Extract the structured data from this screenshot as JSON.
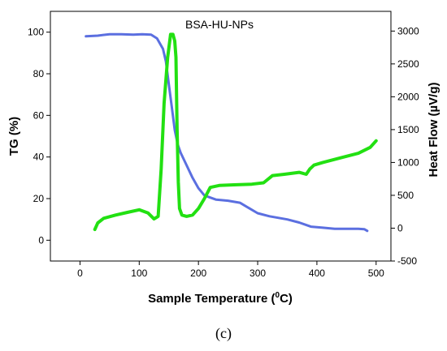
{
  "chart_data": {
    "type": "line",
    "title": "BSA-HU-NPs",
    "panel_label": "(c)",
    "xlabel": "Sample Temperature (0C)",
    "xlabel_parts": [
      "Sample Temperature (",
      "0",
      "C)"
    ],
    "ylabel": "TG (%)",
    "y2label": "Heat Flow (µV/g)",
    "xlim": [
      -50,
      525
    ],
    "ylim": [
      -10,
      110
    ],
    "y2lim": [
      -500,
      3300
    ],
    "x_ticks": [
      0,
      100,
      200,
      300,
      400,
      500
    ],
    "y_ticks": [
      0,
      20,
      40,
      60,
      80,
      100
    ],
    "y2_ticks": [
      -500,
      0,
      500,
      1000,
      1500,
      2000,
      2500,
      3000
    ],
    "grid": false,
    "legend": "none",
    "series": [
      {
        "axis": "left",
        "color": "#5b6fe0",
        "x": [
          10,
          30,
          50,
          70,
          90,
          105,
          120,
          130,
          140,
          145,
          150,
          155,
          160,
          165,
          170,
          180,
          190,
          200,
          210,
          230,
          250,
          270,
          285,
          300,
          320,
          350,
          370,
          390,
          410,
          430,
          450,
          470,
          480,
          485
        ],
        "y": [
          98,
          98.3,
          99,
          99,
          98.8,
          99,
          98.8,
          97,
          92,
          86,
          75,
          64,
          53,
          46,
          42,
          36,
          30,
          25,
          21.5,
          19.5,
          19,
          18,
          15.5,
          13,
          11.5,
          10,
          8.5,
          6.5,
          6,
          5.5,
          5.5,
          5.5,
          5.3,
          4.5
        ]
      },
      {
        "axis": "right",
        "color": "#22e012",
        "x": [
          25,
          30,
          40,
          60,
          80,
          100,
          115,
          125,
          132,
          137,
          142,
          148,
          153,
          157,
          160,
          162,
          164,
          166,
          168,
          172,
          180,
          190,
          200,
          210,
          220,
          235,
          260,
          290,
          310,
          325,
          345,
          370,
          382,
          388,
          395,
          410,
          440,
          470,
          490,
          500
        ],
        "y": [
          -20,
          80,
          150,
          200,
          240,
          280,
          230,
          140,
          180,
          900,
          1900,
          2600,
          2950,
          2950,
          2850,
          2600,
          1500,
          700,
          300,
          200,
          180,
          200,
          300,
          450,
          620,
          650,
          660,
          670,
          690,
          800,
          820,
          850,
          820,
          900,
          960,
          1000,
          1070,
          1140,
          1230,
          1330
        ]
      }
    ]
  }
}
